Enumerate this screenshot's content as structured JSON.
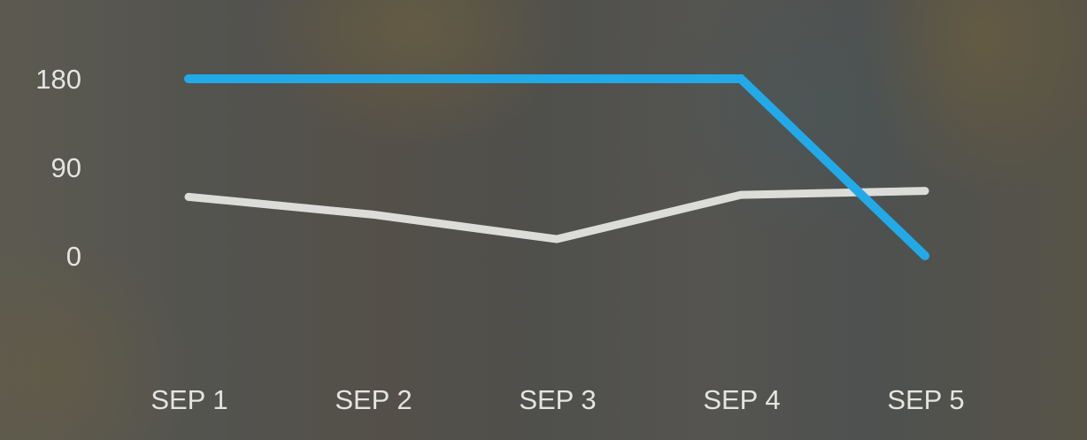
{
  "chart_data": {
    "type": "line",
    "categories": [
      "SEP 1",
      "SEP 2",
      "SEP 3",
      "SEP 4",
      "SEP 5"
    ],
    "series": [
      {
        "color": "#22aae8",
        "values": [
          180,
          180,
          180,
          180,
          0
        ]
      },
      {
        "color": "#dcdcd8",
        "values": [
          60,
          42,
          17,
          62,
          66
        ]
      }
    ],
    "yticks": [
      0,
      90,
      180
    ],
    "ylim": [
      0,
      180
    ],
    "grid": false,
    "legend": "none"
  }
}
